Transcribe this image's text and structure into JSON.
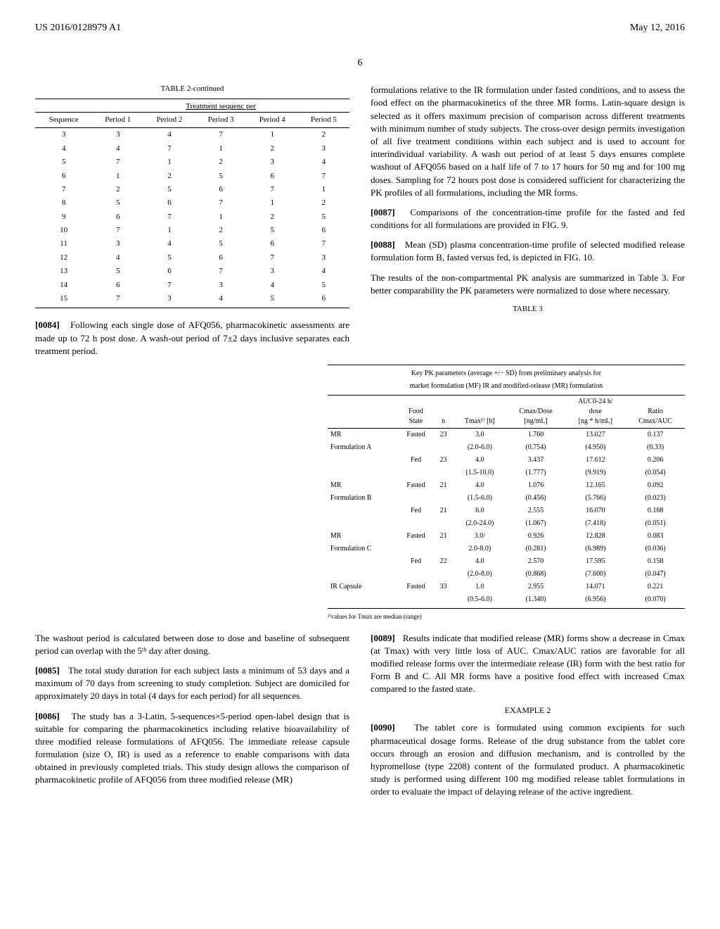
{
  "header": {
    "left": "US 2016/0128979 A1",
    "right": "May 12, 2016"
  },
  "page_number": "6",
  "table2": {
    "title": "TABLE 2-continued",
    "subtitle": "Treatment sequenc per",
    "columns": [
      "Sequence",
      "Period 1",
      "Period 2",
      "Period 3",
      "Period 4",
      "Period 5"
    ],
    "rows": [
      [
        "3",
        "3",
        "4",
        "7",
        "1",
        "2"
      ],
      [
        "4",
        "4",
        "7",
        "1",
        "2",
        "3"
      ],
      [
        "5",
        "7",
        "1",
        "2",
        "3",
        "4"
      ],
      [
        "6",
        "1",
        "2",
        "5",
        "6",
        "7"
      ],
      [
        "7",
        "2",
        "5",
        "6",
        "7",
        "1"
      ],
      [
        "8",
        "5",
        "6",
        "7",
        "1",
        "2"
      ],
      [
        "9",
        "6",
        "7",
        "1",
        "2",
        "5"
      ],
      [
        "10",
        "7",
        "1",
        "2",
        "5",
        "6"
      ],
      [
        "11",
        "3",
        "4",
        "5",
        "6",
        "7"
      ],
      [
        "12",
        "4",
        "5",
        "6",
        "7",
        "3"
      ],
      [
        "13",
        "5",
        "6",
        "7",
        "3",
        "4"
      ],
      [
        "14",
        "6",
        "7",
        "3",
        "4",
        "5"
      ],
      [
        "15",
        "7",
        "3",
        "4",
        "5",
        "6"
      ]
    ]
  },
  "para_0084": "Following each single dose of AFQ056, pharmacokinetic assessments are made up to 72 h post dose. A wash-out period of 7±2 days inclusive separates each treatment period.",
  "right_col_top": "formulations relative to the IR formulation under fasted conditions, and to assess the food effect on the pharmacokinetics of the three MR forms. Latin-square design is selected as it offers maximum precision of comparison across different treatments with minimum number of study subjects. The cross-over design permits investigation of all five treatment conditions within each subject and is used to account for interindividual variability. A wash out period of at least 5 days ensures complete washout of AFQ056 based on a half life of 7 to 17 hours for 50 mg and for 100 mg doses. Sampling for 72 hours post dose is considered sufficient for characterizing the PK profiles of all formulations, including the MR forms.",
  "para_0087": "Comparisons of the concentration-time profile for the fasted and fed conditions for all formulations are provided in FIG. 9.",
  "para_0088": "Mean (SD) plasma concentration-time profile of selected modified release formulation form B, fasted versus fed, is depicted in FIG. 10.",
  "para_0088_after": "The results of the non-compartmental PK analysis are summarized in Table 3. For better comparability the PK parameters were normalized to dose where necessary.",
  "table3": {
    "label": "TABLE 3",
    "caption1": "Key PK parameters (average +/− SD) from preliminary analysis for",
    "caption2": "market formulation (MF) IR and modified-release (MR) formulation",
    "headers": {
      "c1": "",
      "c2a": "Food",
      "c2b": "State",
      "c3": "n",
      "c4": "Tmax¹⁾ [h]",
      "c5a": "Cmax/Dose",
      "c5b": "[ng/mL]",
      "c6a": "AUC0-24 h/",
      "c6b": "dose",
      "c6c": "[ng * h/mL]",
      "c7a": "Ratio",
      "c7b": "Cmax/AUC"
    },
    "rows": [
      {
        "name1": "MR",
        "name2": "Formulation A",
        "food": "Fasted",
        "n": "23",
        "tmax": "3.0",
        "tmax2": "(2.0-6.0)",
        "cmax": "1.760",
        "cmax2": "(0.754)",
        "auc": "13.027",
        "auc2": "(4.950)",
        "ratio": "0.137",
        "ratio2": "(0.33)"
      },
      {
        "name1": "",
        "name2": "",
        "food": "Fed",
        "n": "23",
        "tmax": "4.0",
        "tmax2": "(1.5-10.0)",
        "cmax": "3.437",
        "cmax2": "(1.777)",
        "auc": "17.612",
        "auc2": "(9.919)",
        "ratio": "0.206",
        "ratio2": "(0.054)"
      },
      {
        "name1": "MR",
        "name2": "Formulation B",
        "food": "Fasted",
        "n": "21",
        "tmax": "4.0",
        "tmax2": "(1.5-6.0)",
        "cmax": "1.076",
        "cmax2": "(0.456)",
        "auc": "12.165",
        "auc2": "(5.766)",
        "ratio": "0.092",
        "ratio2": "(0.023)"
      },
      {
        "name1": "",
        "name2": "",
        "food": "Fed",
        "n": "21",
        "tmax": "6.0",
        "tmax2": "(2.0-24.0)",
        "cmax": "2.555",
        "cmax2": "(1.067)",
        "auc": "16.070",
        "auc2": "(7.418)",
        "ratio": "0.168",
        "ratio2": "(0.051)"
      },
      {
        "name1": "MR",
        "name2": "Formulation C",
        "food": "Fasted",
        "n": "21",
        "tmax": "3.0/",
        "tmax2": "2.0-8.0)",
        "cmax": "0.926",
        "cmax2": "(0.281)",
        "auc": "12.828",
        "auc2": "(6.989)",
        "ratio": "0.083",
        "ratio2": "(0.036)"
      },
      {
        "name1": "",
        "name2": "",
        "food": "Fed",
        "n": "22",
        "tmax": "4.0",
        "tmax2": "(2.0-8.0)",
        "cmax": "2.570",
        "cmax2": "(0.868)",
        "auc": "17.595",
        "auc2": "(7.600)",
        "ratio": "0.158",
        "ratio2": "(0.047)"
      },
      {
        "name1": "IR Capsule",
        "name2": "",
        "food": "Fasted",
        "n": "33",
        "tmax": "1.0",
        "tmax2": "(0.5-6.0)",
        "cmax": "2.955",
        "cmax2": "(1.340)",
        "auc": "14.071",
        "auc2": "(6.956)",
        "ratio": "0.221",
        "ratio2": "(0.070)"
      }
    ],
    "footnote": "¹⁾values for Tmax are median (range)"
  },
  "bottom_left_1": "The washout period is calculated between dose to dose and baseline of subsequent period can overlap with the 5ᵗʰ day after dosing.",
  "para_0085": "The total study duration for each subject lasts a minimum of 53 days and a maximum of 70 days from screening to study completion. Subject are domiciled for approximately 20 days in total (4 days for each period) for all sequences.",
  "para_0086": "The study has a 3-Latin, 5-sequences×5-period open-label design that is suitable for comparing the pharmacokinetics including relative bioavailability of three modified release formulations of AFQ056. The immediate release capsule formulation (size O, IR) is used as a reference to enable comparisons with data obtained in previously completed trials. This study design allows the comparison of pharmacokinetic profile of AFQ056 from three modified release (MR)",
  "para_0089": "Results indicate that modified release (MR) forms show a decrease in Cmax (at Tmax) with very little loss of AUC. Cmax/AUC ratios are favorable for all modified release forms over the intermediate release (IR) form with the best ratio for Form B and C. All MR forms have a positive food effect with increased Cmax compared to the fasted state.",
  "example2_title": "EXAMPLE 2",
  "para_0090": "The tablet core is formulated using common excipients for such pharmaceutical dosage forms. Release of the drug substance from the tablet core occurs through an erosion and diffusion mechanism, and is controlled by the hypromellose (type 2208) content of the formulated product. A pharmacokinetic study is performed using different 100 mg modified release tablet formulations in order to evaluate the impact of delaying release of the active ingredient."
}
